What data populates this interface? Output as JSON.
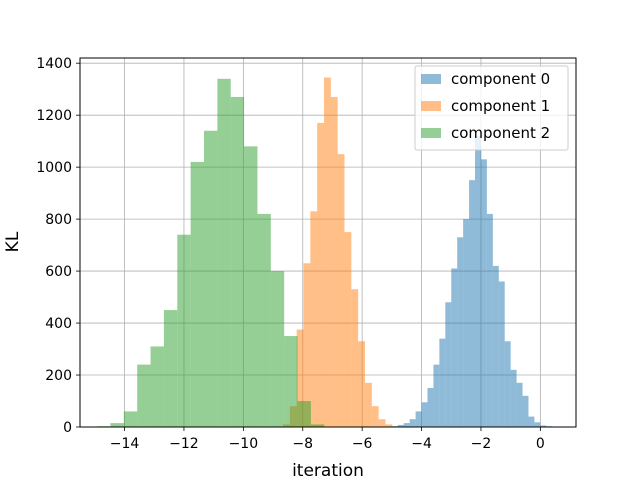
{
  "chart_data": {
    "type": "bar",
    "subtype": "overlaid-histogram",
    "title": "",
    "xlabel": "iteration",
    "ylabel": "KL",
    "xlim": [
      -15.5,
      1.2
    ],
    "ylim": [
      0,
      1420
    ],
    "xticks": [
      -14,
      -12,
      -10,
      -8,
      -6,
      -4,
      -2,
      0
    ],
    "yticks": [
      0,
      200,
      400,
      600,
      800,
      1000,
      1200,
      1400
    ],
    "grid": true,
    "legend_position": "top-right",
    "series": [
      {
        "name": "component 0",
        "color": "#1f77b4",
        "opacity": 0.5,
        "bin_width": 0.2,
        "bin_centers": [
          -4.9,
          -4.7,
          -4.5,
          -4.3,
          -4.1,
          -3.9,
          -3.7,
          -3.5,
          -3.3,
          -3.1,
          -2.9,
          -2.7,
          -2.5,
          -2.3,
          -2.1,
          -1.9,
          -1.7,
          -1.5,
          -1.3,
          -1.1,
          -0.9,
          -0.7,
          -0.5,
          -0.3,
          -0.1,
          0.1,
          0.3
        ],
        "counts": [
          3,
          8,
          15,
          30,
          60,
          95,
          150,
          240,
          340,
          480,
          610,
          730,
          800,
          950,
          1120,
          1030,
          820,
          620,
          560,
          330,
          220,
          170,
          120,
          40,
          18,
          6,
          3
        ]
      },
      {
        "name": "component 1",
        "color": "#ff7f0e",
        "opacity": 0.5,
        "bin_width": 0.23,
        "bin_centers": [
          -8.55,
          -8.32,
          -8.09,
          -7.86,
          -7.63,
          -7.4,
          -7.17,
          -6.94,
          -6.71,
          -6.48,
          -6.25,
          -6.02,
          -5.79,
          -5.56,
          -5.33,
          -5.1
        ],
        "counts": [
          10,
          80,
          375,
          630,
          830,
          1170,
          1345,
          1270,
          1050,
          750,
          530,
          330,
          170,
          80,
          30,
          10
        ]
      },
      {
        "name": "component 2",
        "color": "#2ca02c",
        "opacity": 0.5,
        "bin_width": 0.45,
        "bin_centers": [
          -14.7,
          -14.25,
          -13.8,
          -13.35,
          -12.9,
          -12.45,
          -12.0,
          -11.55,
          -11.1,
          -10.65,
          -10.2,
          -9.75,
          -9.3,
          -8.85,
          -8.4,
          -7.95,
          -7.5
        ],
        "counts": [
          3,
          15,
          60,
          240,
          310,
          450,
          740,
          1020,
          1140,
          1340,
          1270,
          1080,
          820,
          600,
          350,
          100,
          10
        ]
      }
    ]
  }
}
